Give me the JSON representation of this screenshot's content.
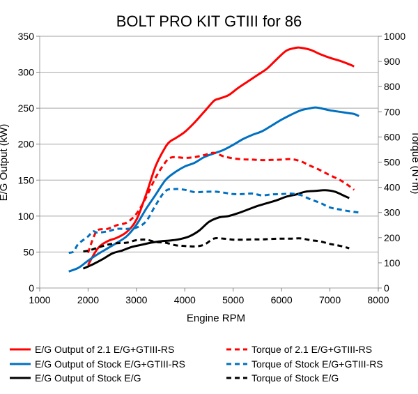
{
  "chart_data": {
    "type": "line",
    "title": "BOLT PRO KIT GTIII for 86",
    "xlabel": "Engine RPM",
    "ylabel_left": "E/G Output (kW)",
    "ylabel_right": "Torque (N･m)",
    "xlim": [
      1000,
      8000
    ],
    "ylim_left": [
      0,
      350
    ],
    "ylim_right": [
      0,
      1000
    ],
    "x_ticks": [
      1000,
      2000,
      3000,
      4000,
      5000,
      6000,
      7000,
      8000
    ],
    "y_ticks_left": [
      0,
      50,
      100,
      150,
      200,
      250,
      300,
      350
    ],
    "y_ticks_right": [
      0,
      100,
      200,
      300,
      400,
      500,
      600,
      700,
      800,
      900,
      1000
    ],
    "grid": "horizontal",
    "legend_position": "bottom",
    "series": [
      {
        "name": "E/G Output of 2.1 E/G+GTIII-RS",
        "color": "#ff0000",
        "dash": "solid",
        "axis": "left",
        "x": [
          2000,
          2200,
          2400,
          2600,
          2800,
          3000,
          3200,
          3400,
          3600,
          3700,
          3800,
          4000,
          4200,
          4400,
          4600,
          4700,
          4900,
          5100,
          5300,
          5500,
          5700,
          5900,
          6100,
          6300,
          6400,
          6600,
          6800,
          7000,
          7200,
          7400,
          7500
        ],
        "y": [
          32,
          55,
          65,
          70,
          78,
          95,
          130,
          170,
          196,
          204,
          208,
          217,
          230,
          245,
          260,
          263,
          268,
          278,
          287,
          296,
          305,
          318,
          330,
          334,
          334,
          331,
          325,
          320,
          316,
          311,
          308
        ]
      },
      {
        "name": "E/G Output of Stock E/G+GTIII-RS",
        "color": "#0070c0",
        "dash": "solid",
        "axis": "left",
        "x": [
          1600,
          1800,
          2000,
          2200,
          2400,
          2600,
          2800,
          3000,
          3200,
          3400,
          3600,
          3800,
          4000,
          4200,
          4400,
          4600,
          4800,
          5000,
          5200,
          5400,
          5600,
          5800,
          6000,
          6200,
          6400,
          6600,
          6700,
          6800,
          7000,
          7200,
          7400,
          7500,
          7600
        ],
        "y": [
          23,
          28,
          38,
          47,
          55,
          63,
          72,
          88,
          110,
          130,
          150,
          161,
          169,
          174,
          182,
          187,
          192,
          199,
          207,
          213,
          218,
          226,
          234,
          241,
          247,
          250,
          251,
          250,
          247,
          245,
          243,
          242,
          239
        ]
      },
      {
        "name": "E/G Output of Stock E/G",
        "color": "#000000",
        "dash": "solid",
        "axis": "left",
        "x": [
          1900,
          2100,
          2300,
          2500,
          2700,
          2900,
          3100,
          3300,
          3500,
          3700,
          3900,
          4100,
          4300,
          4500,
          4700,
          4900,
          5100,
          5300,
          5500,
          5700,
          5900,
          6100,
          6300,
          6500,
          6700,
          6900,
          7100,
          7300,
          7400
        ],
        "y": [
          27,
          33,
          40,
          48,
          52,
          57,
          60,
          63,
          65,
          66,
          68,
          72,
          80,
          92,
          98,
          100,
          104,
          109,
          114,
          118,
          122,
          127,
          130,
          134,
          135,
          136,
          134,
          128,
          125
        ]
      },
      {
        "name": "Torque of 2.1 E/G+GTIII-RS",
        "color": "#ff0000",
        "dash": "dashed",
        "axis": "right",
        "x": [
          2000,
          2100,
          2200,
          2400,
          2600,
          2800,
          3000,
          3200,
          3400,
          3600,
          3700,
          3800,
          4000,
          4200,
          4400,
          4600,
          4800,
          5000,
          5200,
          5400,
          5600,
          5800,
          6000,
          6200,
          6400,
          6600,
          6800,
          7000,
          7200,
          7400,
          7500
        ],
        "y": [
          140,
          195,
          230,
          235,
          250,
          260,
          295,
          360,
          440,
          500,
          517,
          520,
          517,
          520,
          528,
          537,
          523,
          515,
          511,
          510,
          508,
          509,
          510,
          512,
          503,
          485,
          468,
          448,
          430,
          405,
          390
        ]
      },
      {
        "name": "Torque of Stock E/G+GTIII-RS",
        "color": "#0070c0",
        "dash": "dashed",
        "axis": "right",
        "x": [
          1600,
          1700,
          1800,
          2000,
          2100,
          2200,
          2400,
          2600,
          2800,
          3000,
          3200,
          3400,
          3600,
          3800,
          4000,
          4200,
          4400,
          4600,
          4800,
          5000,
          5200,
          5400,
          5600,
          5800,
          6000,
          6200,
          6400,
          6600,
          6800,
          7000,
          7200,
          7400,
          7600
        ],
        "y": [
          140,
          145,
          175,
          205,
          225,
          220,
          225,
          235,
          235,
          240,
          265,
          330,
          385,
          393,
          390,
          381,
          382,
          383,
          379,
          373,
          373,
          375,
          368,
          372,
          373,
          375,
          369,
          352,
          338,
          320,
          312,
          305,
          300
        ]
      },
      {
        "name": "Torque of Stock E/G",
        "color": "#000000",
        "dash": "dashed",
        "axis": "right",
        "x": [
          1900,
          2000,
          2200,
          2400,
          2600,
          2800,
          3000,
          3200,
          3400,
          3600,
          3800,
          4000,
          4200,
          4400,
          4600,
          4800,
          5000,
          5200,
          5400,
          5600,
          5800,
          6000,
          6200,
          6400,
          6600,
          6800,
          7000,
          7200,
          7400
        ],
        "y": [
          145,
          148,
          160,
          172,
          178,
          180,
          190,
          192,
          183,
          180,
          170,
          167,
          165,
          172,
          196,
          196,
          192,
          192,
          193,
          193,
          195,
          196,
          196,
          197,
          190,
          185,
          175,
          168,
          158
        ]
      }
    ]
  },
  "legend": {
    "items": [
      "E/G Output of 2.1 E/G+GTIII-RS",
      "Torque of 2.1 E/G+GTIII-RS",
      "E/G Output of Stock E/G+GTIII-RS",
      "Torque of Stock E/G+GTIII-RS",
      "E/G Output of Stock E/G",
      "Torque of Stock E/G"
    ]
  }
}
